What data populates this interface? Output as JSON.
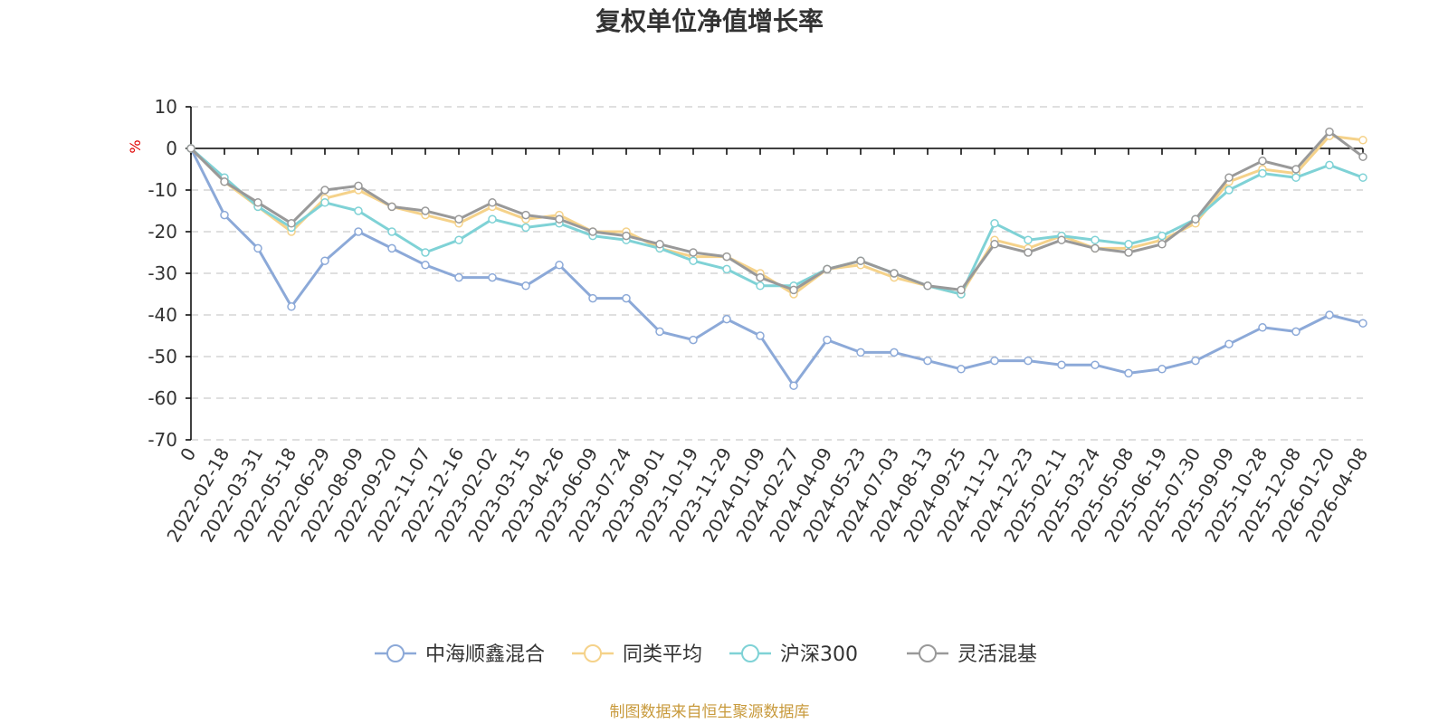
{
  "chart_data": {
    "type": "line",
    "title": "复权单位净值增长率",
    "ylabel": "%",
    "ylim": [
      -70,
      10
    ],
    "yticks": [
      10,
      0,
      -10,
      -20,
      -30,
      -40,
      -50,
      -60,
      -70
    ],
    "grid": true,
    "legend_position": "bottom-center",
    "x_categories": [
      "0",
      "2022-02-18",
      "2022-03-31",
      "2022-05-18",
      "2022-06-29",
      "2022-08-09",
      "2022-09-20",
      "2022-11-07",
      "2022-12-16",
      "2023-02-02",
      "2023-03-15",
      "2023-04-26",
      "2023-06-09",
      "2023-07-24",
      "2023-09-01",
      "2023-10-19",
      "2023-11-29",
      "2024-01-09",
      "2024-02-27",
      "2024-04-09",
      "2024-05-23",
      "2024-07-03",
      "2024-08-13",
      "2024-09-25",
      "2024-11-12",
      "2024-12-23",
      "2025-02-11",
      "2025-03-24",
      "2025-05-08",
      "2025-06-19",
      "2025-07-30",
      "2025-09-09",
      "2025-10-28",
      "2025-12-08",
      "2026-01-20",
      "2026-04-08"
    ],
    "series": [
      {
        "name": "中海顺鑫混合",
        "color": "#8ca9d8",
        "values": [
          0,
          -16,
          -24,
          -38,
          -27,
          -20,
          -24,
          -28,
          -31,
          -31,
          -33,
          -28,
          -36,
          -36,
          -44,
          -46,
          -41,
          -45,
          -57,
          -46,
          -49,
          -49,
          -51,
          -53,
          -51,
          -51,
          -52,
          -52,
          -54,
          -53,
          -51,
          -47,
          -43,
          -44,
          -40,
          -42
        ]
      },
      {
        "name": "同类平均",
        "color": "#f5d28a",
        "values": [
          0,
          -8,
          -14,
          -20,
          -12,
          -10,
          -14,
          -16,
          -18,
          -14,
          -17,
          -16,
          -20,
          -20,
          -24,
          -26,
          -26,
          -30,
          -35,
          -29,
          -28,
          -31,
          -33,
          -35,
          -22,
          -24,
          -21,
          -24,
          -24,
          -22,
          -18,
          -8,
          -5,
          -6,
          3,
          2
        ]
      },
      {
        "name": "沪深300",
        "color": "#7fd2d6",
        "values": [
          0,
          -7,
          -14,
          -19,
          -13,
          -15,
          -20,
          -25,
          -22,
          -17,
          -19,
          -18,
          -21,
          -22,
          -24,
          -27,
          -29,
          -33,
          -33,
          -29,
          -27,
          -30,
          -33,
          -35,
          -18,
          -22,
          -21,
          -22,
          -23,
          -21,
          -17,
          -10,
          -6,
          -7,
          -4,
          -7
        ]
      },
      {
        "name": "灵活混基",
        "color": "#999999",
        "values": [
          0,
          -8,
          -13,
          -18,
          -10,
          -9,
          -14,
          -15,
          -17,
          -13,
          -16,
          -17,
          -20,
          -21,
          -23,
          -25,
          -26,
          -31,
          -34,
          -29,
          -27,
          -30,
          -33,
          -34,
          -23,
          -25,
          -22,
          -24,
          -25,
          -23,
          -17,
          -7,
          -3,
          -5,
          4,
          -2
        ]
      }
    ],
    "source_text": "制图数据来自恒生聚源数据库"
  }
}
